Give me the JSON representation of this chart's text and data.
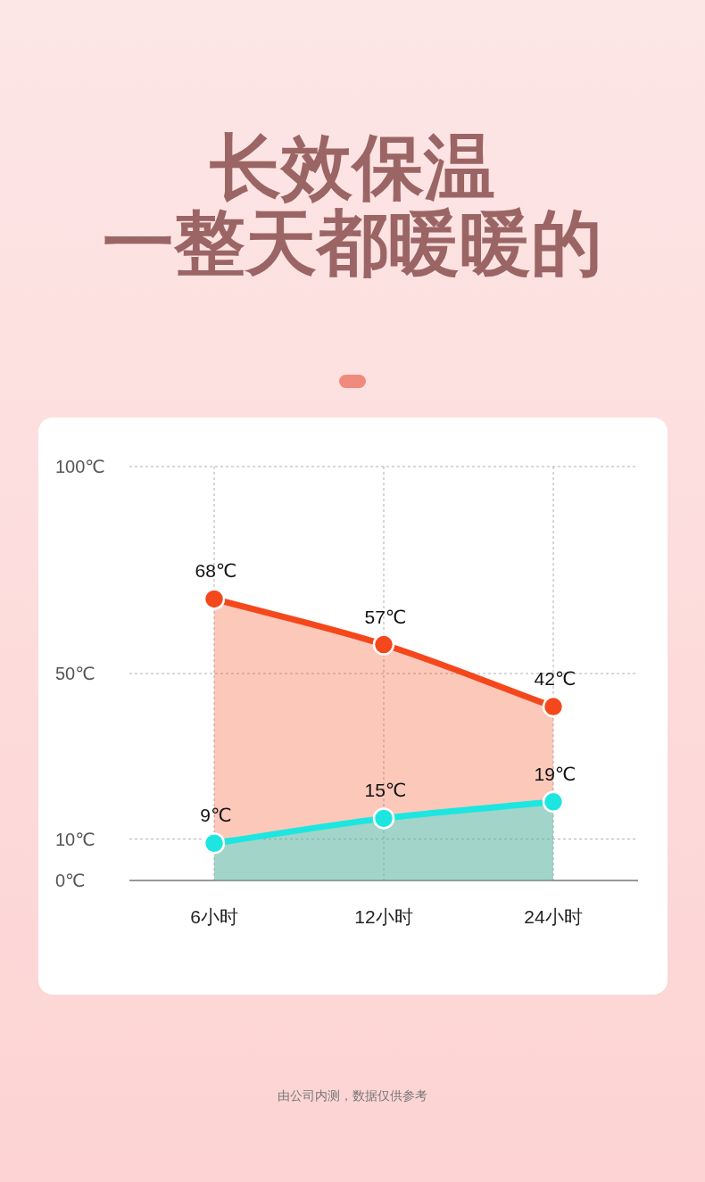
{
  "chart_data": {
    "type": "area",
    "title": "长效保温",
    "subtitle": "一整天都暖暖的",
    "annotations": [
      "由公司内测，数据仅供参考"
    ],
    "categories": [
      "6小时",
      "12小时",
      "24小时"
    ],
    "series": [
      {
        "color": "#f4481c",
        "values": [
          68,
          57,
          42
        ],
        "value_labels": [
          "68℃",
          "57℃",
          "42℃"
        ]
      },
      {
        "color": "#1de6e0",
        "values": [
          9,
          15,
          19
        ],
        "value_labels": [
          "9℃",
          "15℃",
          "19℃"
        ]
      }
    ],
    "ylim": [
      0,
      100
    ],
    "yticks": [
      {
        "value": 0,
        "label": "0℃"
      },
      {
        "value": 10,
        "label": "10℃"
      },
      {
        "value": 50,
        "label": "50℃"
      },
      {
        "value": 100,
        "label": "100℃"
      }
    ],
    "grid": true,
    "marker": "circle"
  }
}
